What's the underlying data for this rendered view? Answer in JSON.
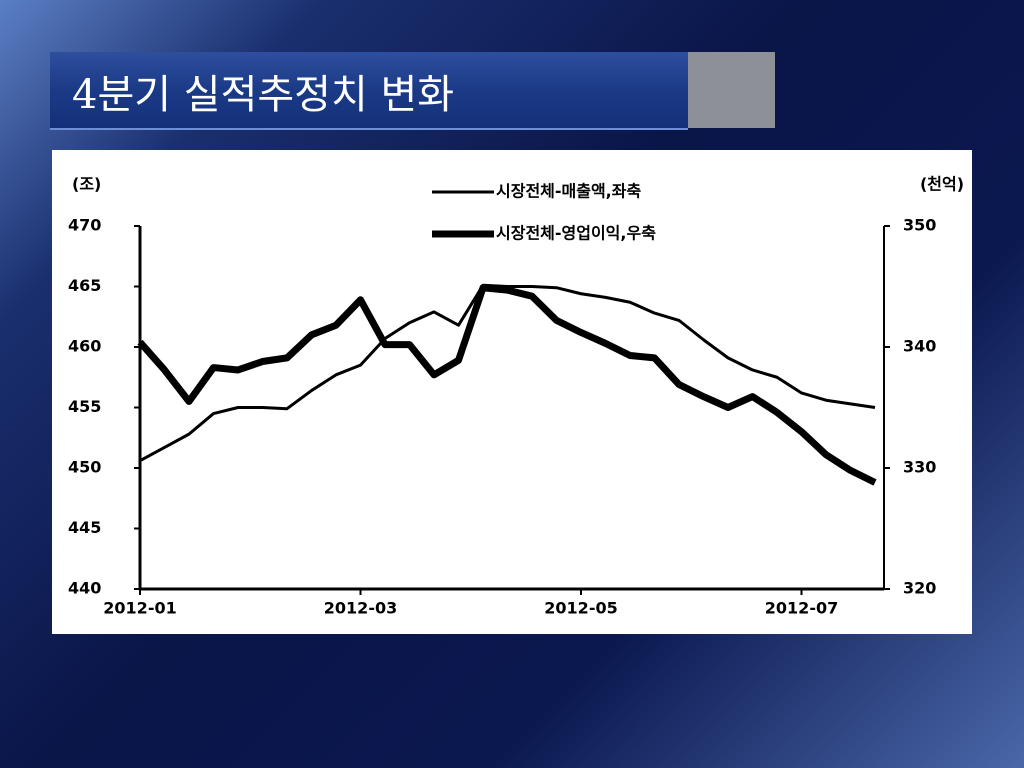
{
  "chart_data": {
    "type": "line",
    "title": "4분기 실적추정치 변화",
    "y_unit_label": "(조)",
    "y2_unit_label": "(천억)",
    "categories": [
      "2012-01",
      null,
      null,
      null,
      null,
      null,
      null,
      null,
      null,
      "2012-03",
      null,
      null,
      null,
      null,
      null,
      null,
      null,
      null,
      "2012-05",
      null,
      null,
      null,
      null,
      null,
      null,
      null,
      null,
      "2012-07",
      null,
      null,
      null
    ],
    "series": [
      {
        "name": "시장전체-매출액,좌축",
        "color": "#000000",
        "width": 3,
        "axis": "y",
        "values": [
          450.6,
          451.7,
          452.8,
          454.5,
          455.0,
          455.0,
          454.9,
          456.4,
          457.7,
          458.5,
          460.7,
          462.0,
          462.9,
          461.8,
          465.1,
          465.0,
          465.0,
          464.9,
          464.4,
          464.1,
          463.7,
          462.8,
          462.2,
          460.6,
          459.1,
          458.1,
          457.5,
          456.2,
          455.6,
          455.3,
          455.0
        ]
      },
      {
        "name": "시장전체-영업이익,우축",
        "color": "#000000",
        "width": 7,
        "axis": "y2",
        "values": [
          340.4,
          338.1,
          335.5,
          338.3,
          338.1,
          338.8,
          339.1,
          341.0,
          341.8,
          343.9,
          340.2,
          340.2,
          337.7,
          338.9,
          344.9,
          344.7,
          344.2,
          342.2,
          341.2,
          340.3,
          339.3,
          339.1,
          336.9,
          335.9,
          335.0,
          335.9,
          334.6,
          333.0,
          331.1,
          329.8,
          328.8
        ]
      }
    ],
    "ylim": [
      440,
      470
    ],
    "yticks": [
      440,
      445,
      450,
      455,
      460,
      465,
      470
    ],
    "y2lim": [
      320,
      350
    ],
    "y2ticks": [
      320,
      330,
      340,
      350
    ],
    "grid": false
  }
}
